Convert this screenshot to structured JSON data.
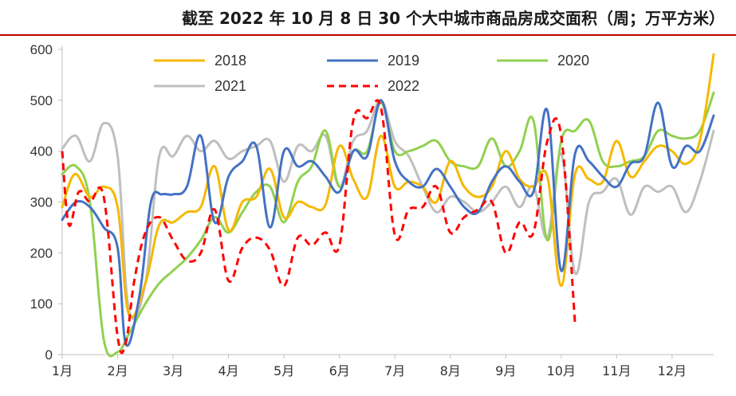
{
  "title": "截至 2022 年 10 月 8 日 30 个大中城市商品房成交面积（周；万平方米）",
  "colors": {
    "title_rule": "#c00000",
    "2018": "#f5b800",
    "2019": "#4472c4",
    "2020": "#92d050",
    "2021": "#bfbfbf",
    "2022": "#ff0000"
  },
  "chart_data": {
    "type": "line",
    "title": "截至 2022 年 10 月 8 日 30 个大中城市商品房成交面积（周；万平方米）",
    "xlabel": "",
    "ylabel": "",
    "ylim": [
      0,
      600
    ],
    "yticks": [
      0,
      100,
      200,
      300,
      400,
      500,
      600
    ],
    "xlim": [
      1,
      12.75
    ],
    "xticks": [
      1,
      2,
      3,
      4,
      5,
      6,
      7,
      8,
      9,
      10,
      11,
      12
    ],
    "xtick_labels": [
      "1月",
      "2月",
      "3月",
      "4月",
      "5月",
      "6月",
      "7月",
      "8月",
      "9月",
      "10月",
      "11月",
      "12月"
    ],
    "grid": false,
    "legend": "top",
    "series": [
      {
        "name": "2018",
        "style": "solid",
        "x": [
          1,
          1.23,
          1.5,
          1.75,
          2.0,
          2.2,
          2.5,
          2.75,
          3.0,
          3.25,
          3.5,
          3.75,
          4.0,
          4.25,
          4.5,
          4.75,
          5.0,
          5.25,
          5.5,
          5.75,
          6.0,
          6.25,
          6.5,
          6.75,
          7.0,
          7.25,
          7.5,
          7.75,
          8.0,
          8.25,
          8.5,
          8.75,
          9.0,
          9.25,
          9.5,
          9.75,
          10.0,
          10.25,
          10.5,
          10.75,
          11.0,
          11.25,
          11.5,
          11.75,
          12.0,
          12.25,
          12.5,
          12.75
        ],
        "y": [
          290,
          355,
          310,
          330,
          290,
          80,
          140,
          255,
          260,
          280,
          290,
          370,
          245,
          300,
          310,
          365,
          270,
          300,
          290,
          295,
          410,
          345,
          310,
          430,
          330,
          340,
          330,
          300,
          380,
          330,
          310,
          330,
          400,
          345,
          330,
          350,
          135,
          355,
          345,
          340,
          420,
          350,
          380,
          410,
          400,
          375,
          420,
          590
        ]
      },
      {
        "name": "2019",
        "style": "solid",
        "x": [
          1,
          1.25,
          1.5,
          1.75,
          2.0,
          2.15,
          2.4,
          2.6,
          2.8,
          3.0,
          3.25,
          3.5,
          3.75,
          4.0,
          4.25,
          4.5,
          4.75,
          5.0,
          5.25,
          5.5,
          5.75,
          6.0,
          6.25,
          6.5,
          6.75,
          7.0,
          7.25,
          7.5,
          7.75,
          8.0,
          8.25,
          8.5,
          8.75,
          9.0,
          9.25,
          9.5,
          9.75,
          10.0,
          10.25,
          10.5,
          10.75,
          11.0,
          11.25,
          11.5,
          11.75,
          12.0,
          12.25,
          12.5,
          12.75
        ],
        "y": [
          265,
          300,
          290,
          250,
          210,
          20,
          120,
          300,
          315,
          315,
          330,
          430,
          260,
          350,
          380,
          410,
          250,
          400,
          370,
          380,
          350,
          320,
          400,
          390,
          500,
          380,
          340,
          330,
          365,
          330,
          290,
          280,
          340,
          370,
          340,
          320,
          480,
          165,
          395,
          380,
          350,
          330,
          375,
          390,
          495,
          370,
          410,
          400,
          470
        ]
      },
      {
        "name": "2020",
        "style": "solid",
        "x": [
          1,
          1.25,
          1.5,
          1.75,
          2.0,
          2.2,
          2.5,
          2.75,
          3.0,
          3.25,
          3.5,
          3.75,
          4.0,
          4.25,
          4.5,
          4.75,
          5.0,
          5.25,
          5.5,
          5.75,
          6.0,
          6.25,
          6.5,
          6.75,
          7.0,
          7.25,
          7.5,
          7.75,
          8.0,
          8.25,
          8.5,
          8.75,
          9.0,
          9.25,
          9.5,
          9.75,
          10.0,
          10.25,
          10.5,
          10.75,
          11.0,
          11.25,
          11.5,
          11.75,
          12.0,
          12.25,
          12.5,
          12.75
        ],
        "y": [
          355,
          370,
          300,
          30,
          5,
          40,
          100,
          140,
          165,
          190,
          225,
          270,
          240,
          280,
          320,
          330,
          260,
          340,
          370,
          440,
          330,
          400,
          400,
          495,
          400,
          400,
          410,
          420,
          380,
          370,
          370,
          425,
          370,
          400,
          460,
          225,
          420,
          440,
          460,
          380,
          370,
          380,
          390,
          440,
          430,
          425,
          440,
          515
        ]
      },
      {
        "name": "2021",
        "style": "solid",
        "x": [
          1,
          1.25,
          1.5,
          1.75,
          2.0,
          2.2,
          2.5,
          2.75,
          3.0,
          3.25,
          3.5,
          3.75,
          4.0,
          4.25,
          4.5,
          4.75,
          5.0,
          5.25,
          5.5,
          5.75,
          6.0,
          6.25,
          6.5,
          6.75,
          7.0,
          7.25,
          7.5,
          7.75,
          8.0,
          8.25,
          8.5,
          8.75,
          9.0,
          9.25,
          9.5,
          9.75,
          10.0,
          10.25,
          10.5,
          10.75,
          11.0,
          11.25,
          11.5,
          11.75,
          12.0,
          12.25,
          12.5,
          12.75
        ],
        "y": [
          405,
          430,
          380,
          455,
          390,
          90,
          140,
          390,
          390,
          430,
          400,
          420,
          385,
          400,
          410,
          420,
          340,
          410,
          400,
          430,
          330,
          420,
          440,
          500,
          420,
          390,
          330,
          280,
          310,
          300,
          280,
          300,
          330,
          290,
          330,
          230,
          395,
          160,
          300,
          320,
          345,
          275,
          330,
          320,
          330,
          280,
          340,
          440
        ]
      },
      {
        "name": "2022",
        "style": "dashed",
        "x": [
          1,
          1.12,
          1.3,
          1.5,
          1.75,
          2.0,
          2.15,
          2.3,
          2.5,
          2.75,
          3.0,
          3.25,
          3.5,
          3.75,
          4.0,
          4.25,
          4.5,
          4.75,
          5.0,
          5.25,
          5.5,
          5.75,
          6.0,
          6.25,
          6.5,
          6.75,
          7.0,
          7.25,
          7.5,
          7.75,
          8.0,
          8.25,
          8.5,
          8.75,
          9.0,
          9.25,
          9.5,
          9.75,
          10.0,
          10.25
        ],
        "y": [
          400,
          255,
          320,
          300,
          310,
          35,
          25,
          145,
          240,
          270,
          225,
          185,
          200,
          285,
          145,
          210,
          230,
          205,
          135,
          230,
          215,
          240,
          215,
          460,
          465,
          485,
          235,
          285,
          290,
          330,
          240,
          270,
          285,
          300,
          200,
          260,
          240,
          420,
          430,
          60
        ]
      }
    ]
  }
}
